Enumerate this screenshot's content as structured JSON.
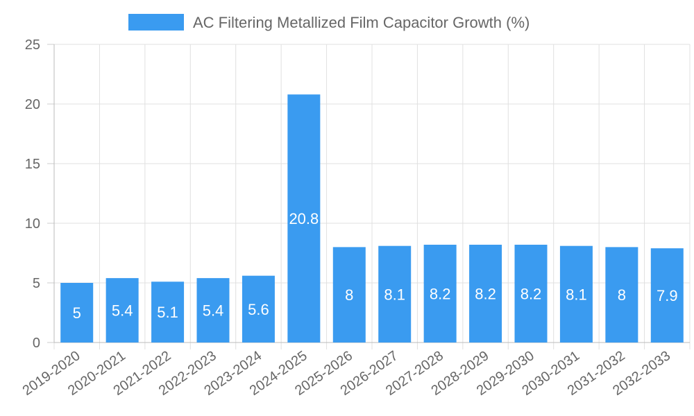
{
  "chart_data": {
    "type": "bar",
    "categories": [
      "2019-2020",
      "2020-2021",
      "2021-2022",
      "2022-2023",
      "2023-2024",
      "2024-2025",
      "2025-2026",
      "2026-2027",
      "2027-2028",
      "2028-2029",
      "2029-2030",
      "2030-2031",
      "2031-2032",
      "2032-2033"
    ],
    "series": [
      {
        "name": "AC Filtering Metallized Film Capacitor Growth (%)",
        "values": [
          5,
          5.4,
          5.1,
          5.4,
          5.6,
          20.8,
          8,
          8.1,
          8.2,
          8.2,
          8.2,
          8.1,
          8,
          7.9
        ]
      }
    ],
    "ylim": [
      0,
      25
    ],
    "yticks": [
      0,
      5,
      10,
      15,
      20,
      25
    ],
    "legend_position": "top",
    "grid": true,
    "bar_color": "#3a9bf0"
  }
}
